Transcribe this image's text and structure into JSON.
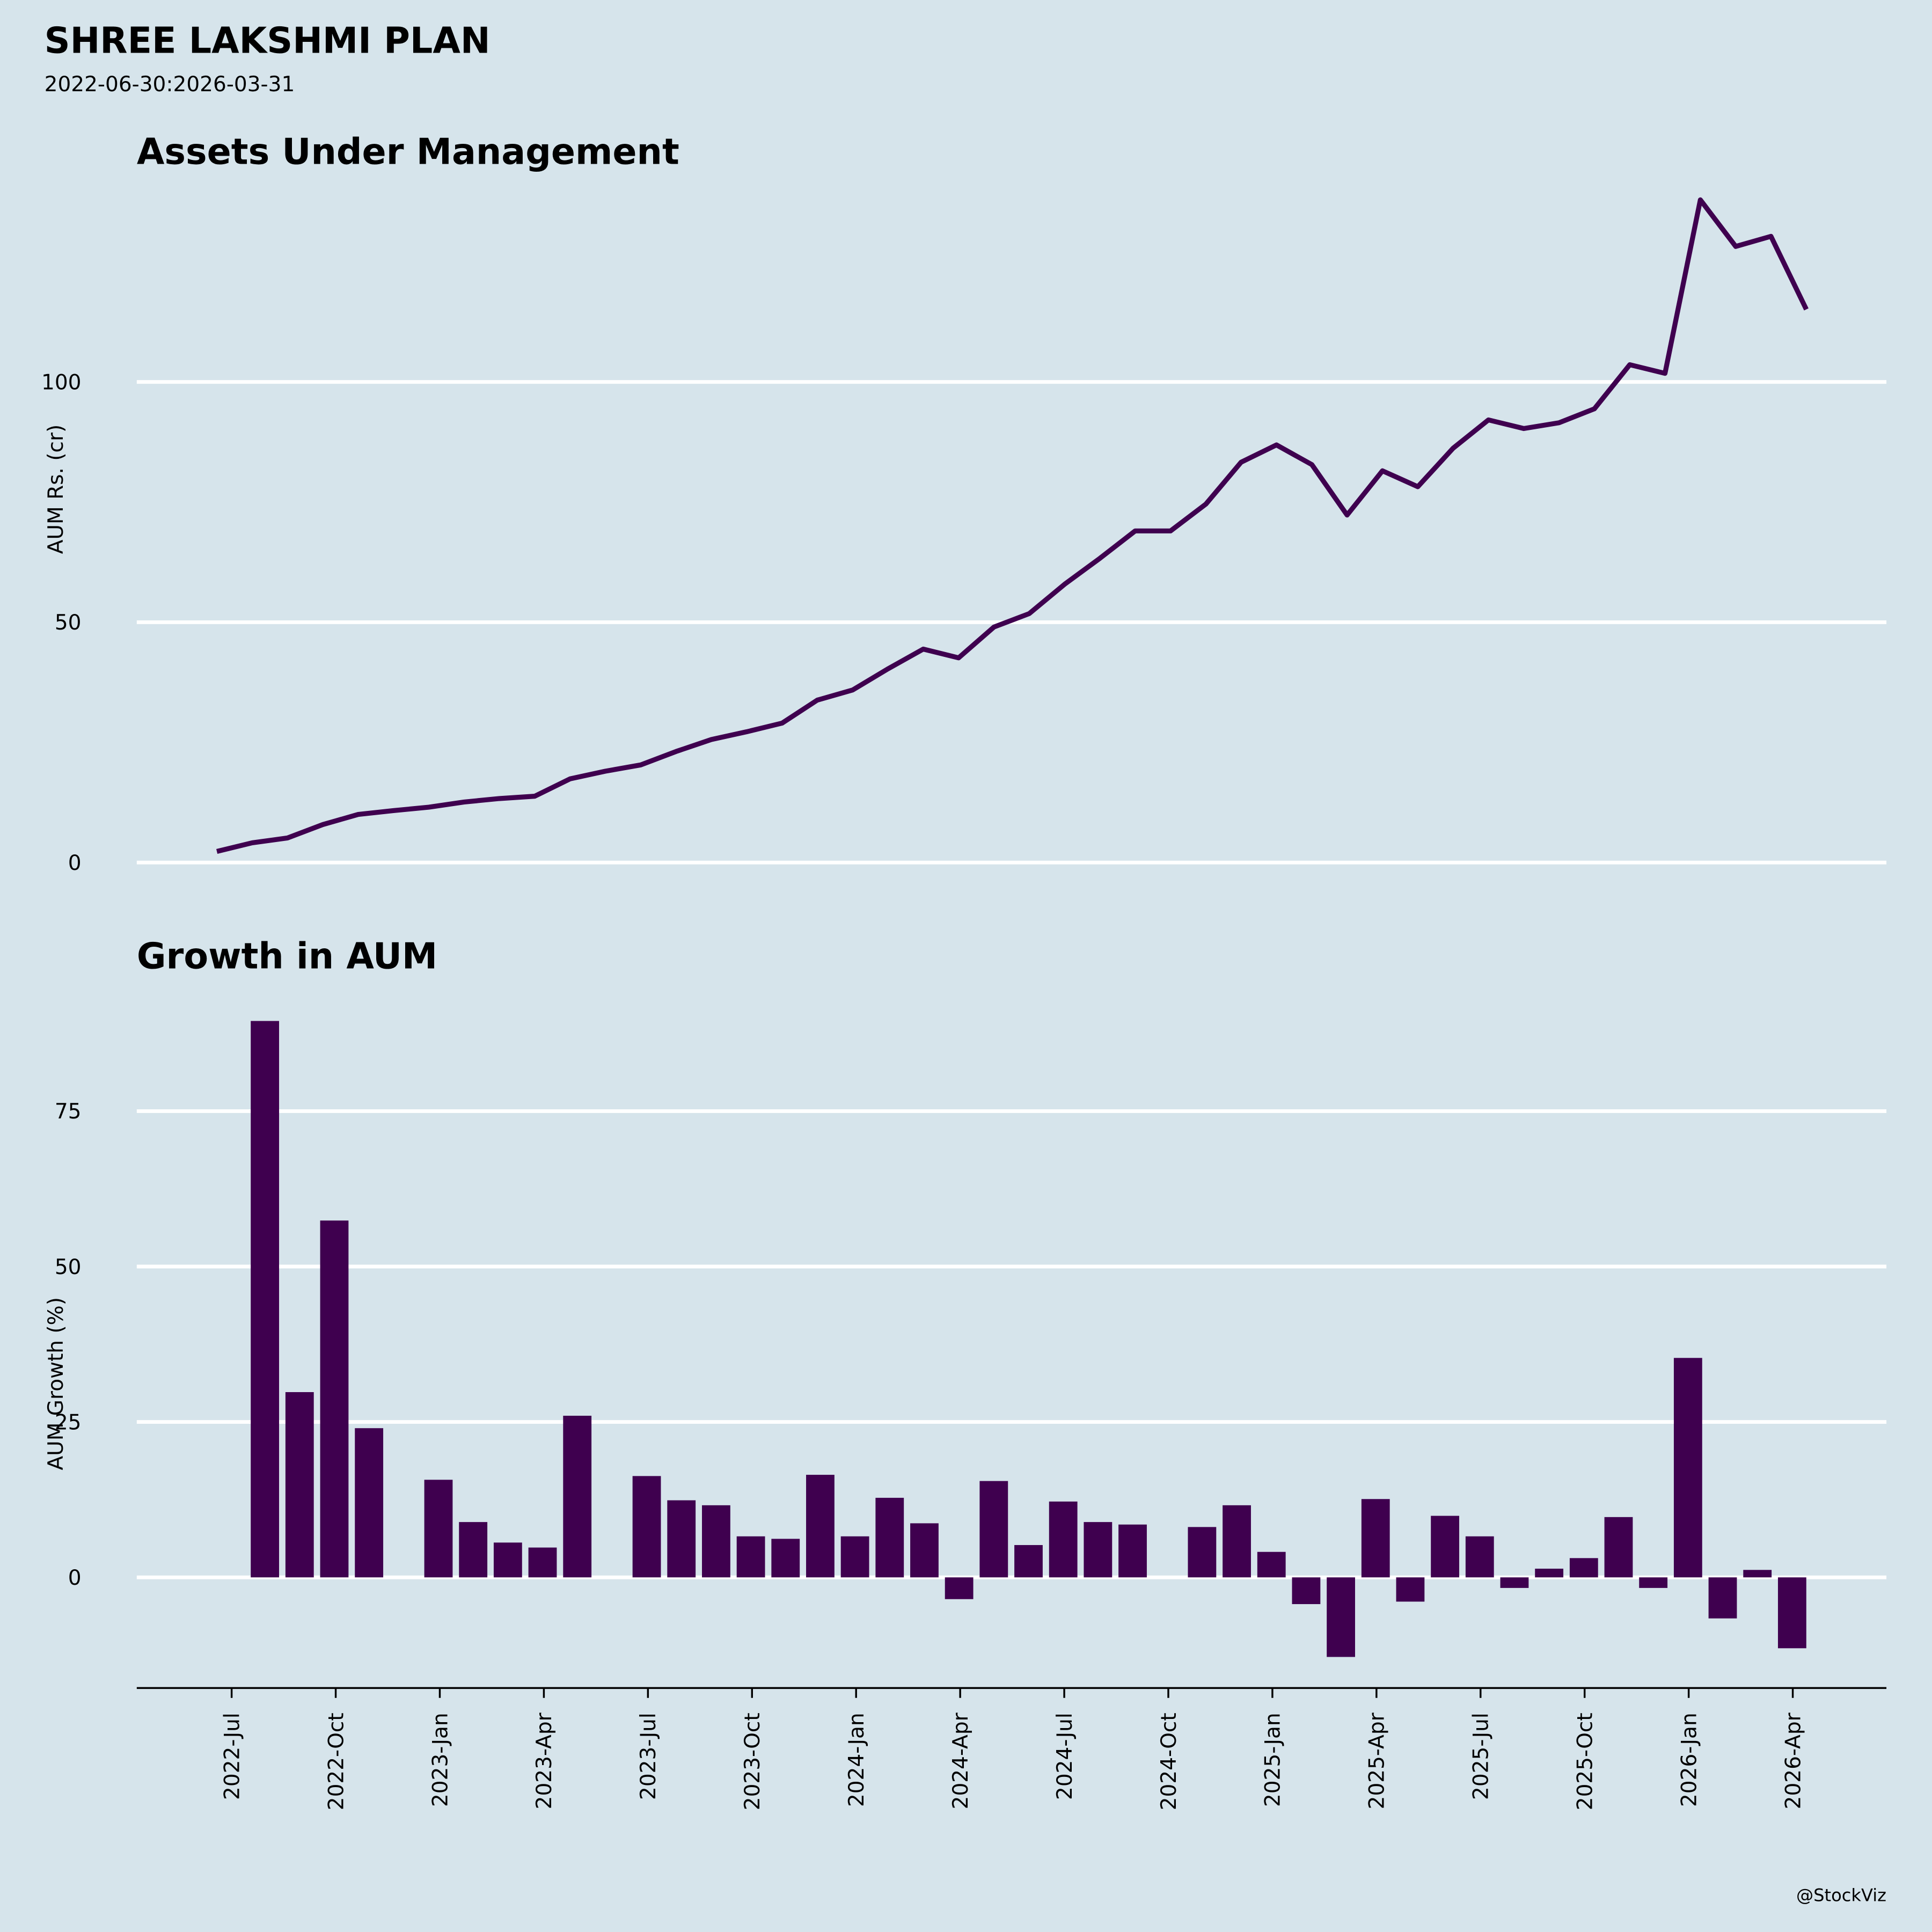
{
  "header": {
    "title": "SHREE LAKSHMI PLAN",
    "subtitle": "2022-06-30:2026-03-31",
    "credit": "@StockViz"
  },
  "chart_data": [
    {
      "type": "line",
      "title": "Assets Under Management",
      "y_label": "AUM Rs. (cr)",
      "color": "#3f004f",
      "grid": true,
      "x": [
        "2022-06",
        "2022-07",
        "2022-08",
        "2022-09",
        "2022-10",
        "2022-11",
        "2022-12",
        "2023-01",
        "2023-02",
        "2023-03",
        "2023-04",
        "2023-05",
        "2023-06",
        "2023-07",
        "2023-08",
        "2023-09",
        "2023-10",
        "2023-11",
        "2023-12",
        "2024-01",
        "2024-02",
        "2024-03",
        "2024-04",
        "2024-05",
        "2024-06",
        "2024-07",
        "2024-08",
        "2024-09",
        "2024-10",
        "2024-11",
        "2024-12",
        "2025-01",
        "2025-02",
        "2025-03",
        "2025-04",
        "2025-05",
        "2025-06",
        "2025-07",
        "2025-08",
        "2025-09",
        "2025-10",
        "2025-11",
        "2025-12",
        "2026-01",
        "2026-02",
        "2026-03"
      ],
      "values": [
        2.3,
        4.1,
        5.1,
        7.9,
        10.0,
        10.8,
        11.5,
        12.6,
        13.3,
        13.8,
        17.4,
        19.0,
        20.3,
        23.1,
        25.6,
        27.2,
        29.0,
        33.8,
        35.9,
        40.3,
        44.4,
        42.6,
        49.0,
        51.8,
        57.9,
        63.3,
        69.0,
        69.0,
        74.6,
        83.3,
        86.9,
        82.8,
        72.3,
        81.5,
        78.2,
        86.2,
        92.1,
        90.3,
        91.5,
        94.4,
        103.6,
        101.8,
        137.9,
        128.2,
        130.3,
        115.1
      ],
      "ylim": [
        0,
        140
      ],
      "yticks": [
        0,
        50,
        100
      ]
    },
    {
      "type": "bar",
      "title": "Growth in AUM",
      "y_label": "AUM Growth (%)",
      "color": "#3f004f",
      "grid": true,
      "x": [
        "2022-06",
        "2022-07",
        "2022-08",
        "2022-09",
        "2022-10",
        "2022-11",
        "2022-12",
        "2023-01",
        "2023-02",
        "2023-03",
        "2023-04",
        "2023-05",
        "2023-06",
        "2023-07",
        "2023-08",
        "2023-09",
        "2023-10",
        "2023-11",
        "2023-12",
        "2024-01",
        "2024-02",
        "2024-03",
        "2024-04",
        "2024-05",
        "2024-06",
        "2024-07",
        "2024-08",
        "2024-09",
        "2024-10",
        "2024-11",
        "2024-12",
        "2025-01",
        "2025-02",
        "2025-03",
        "2025-04",
        "2025-05",
        "2025-06",
        "2025-07",
        "2025-08",
        "2025-09",
        "2025-10",
        "2025-11",
        "2025-12",
        "2026-01",
        "2026-02",
        "2026-03"
      ],
      "values": [
        null,
        89.5,
        29.8,
        57.4,
        24.0,
        null,
        15.7,
        8.9,
        5.6,
        4.8,
        26.0,
        null,
        16.3,
        12.4,
        11.6,
        6.6,
        6.2,
        16.5,
        6.6,
        12.8,
        8.7,
        -3.5,
        15.5,
        5.2,
        12.2,
        8.9,
        8.5,
        null,
        8.1,
        11.6,
        4.1,
        -4.3,
        -12.8,
        12.6,
        -3.9,
        9.9,
        6.6,
        -1.7,
        1.4,
        3.1,
        9.7,
        -1.7,
        35.3,
        -6.6,
        1.2,
        -11.4
      ],
      "ylim": [
        -17.8,
        92
      ],
      "yticks": [
        0,
        25,
        50,
        75
      ],
      "xticks": [
        "2022-Jul",
        "2022-Oct",
        "2023-Jan",
        "2023-Apr",
        "2023-Jul",
        "2023-Oct",
        "2024-Jan",
        "2024-Apr",
        "2024-Jul",
        "2024-Oct",
        "2025-Jan",
        "2025-Apr",
        "2025-Jul",
        "2025-Oct",
        "2026-Jan",
        "2026-Apr"
      ]
    }
  ]
}
